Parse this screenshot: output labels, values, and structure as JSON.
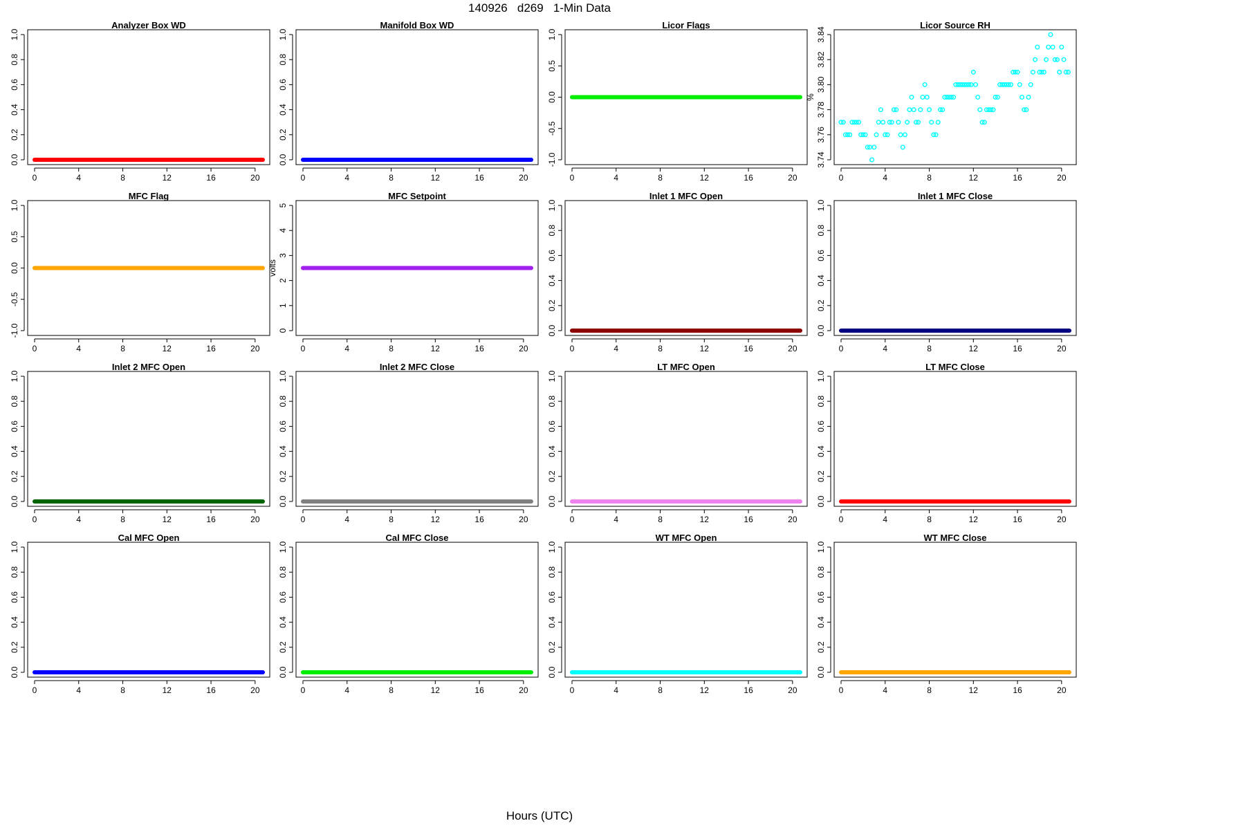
{
  "figure": {
    "title": "140926   d269   1-Min Data",
    "xlabel": "Hours (UTC)"
  },
  "chart_data": [
    {
      "type": "scatter",
      "title": "Analyzer Box WD",
      "ylabel": "",
      "color": "#ff0000",
      "xlim": [
        0,
        20.7
      ],
      "xticks": [
        0,
        4,
        8,
        12,
        16,
        20
      ],
      "ylim": [
        0,
        1
      ],
      "yticks": [
        "0.0",
        "0.2",
        "0.4",
        "0.6",
        "0.8",
        "1.0"
      ],
      "series": [
        {
          "x": [
            0,
            20.7
          ],
          "y": [
            0,
            0
          ],
          "kind": "constant"
        }
      ]
    },
    {
      "type": "scatter",
      "title": "Manifold Box WD",
      "ylabel": "",
      "color": "#0000ff",
      "xlim": [
        0,
        20.7
      ],
      "xticks": [
        0,
        4,
        8,
        12,
        16,
        20
      ],
      "ylim": [
        0,
        1
      ],
      "yticks": [
        "0.0",
        "0.2",
        "0.4",
        "0.6",
        "0.8",
        "1.0"
      ],
      "series": [
        {
          "x": [
            0,
            20.7
          ],
          "y": [
            0,
            0
          ],
          "kind": "constant"
        }
      ]
    },
    {
      "type": "scatter",
      "title": "Licor Flags",
      "ylabel": "",
      "color": "#00ee00",
      "xlim": [
        0,
        20.7
      ],
      "xticks": [
        0,
        4,
        8,
        12,
        16,
        20
      ],
      "ylim": [
        -1,
        1
      ],
      "yticks": [
        "-1.0",
        "-0.5",
        "0.0",
        "0.5",
        "1.0"
      ],
      "series": [
        {
          "x": [
            0,
            20.7
          ],
          "y": [
            0,
            0
          ],
          "kind": "constant"
        }
      ]
    },
    {
      "type": "scatter",
      "title": "Licor Source RH",
      "ylabel": "%",
      "color": "#00ffff",
      "xlim": [
        0,
        20.7
      ],
      "xticks": [
        0,
        4,
        8,
        12,
        16,
        20
      ],
      "ylim": [
        3.74,
        3.84
      ],
      "yticks": [
        "3.74",
        "3.76",
        "3.78",
        "3.80",
        "3.82",
        "3.84"
      ],
      "points": [
        [
          0.0,
          3.77
        ],
        [
          0.2,
          3.77
        ],
        [
          0.4,
          3.76
        ],
        [
          0.6,
          3.76
        ],
        [
          0.8,
          3.76
        ],
        [
          1.0,
          3.77
        ],
        [
          1.2,
          3.77
        ],
        [
          1.4,
          3.77
        ],
        [
          1.6,
          3.77
        ],
        [
          1.8,
          3.76
        ],
        [
          2.0,
          3.76
        ],
        [
          2.2,
          3.76
        ],
        [
          2.4,
          3.75
        ],
        [
          2.6,
          3.75
        ],
        [
          2.8,
          3.74
        ],
        [
          3.0,
          3.75
        ],
        [
          3.2,
          3.76
        ],
        [
          3.4,
          3.77
        ],
        [
          3.6,
          3.78
        ],
        [
          3.8,
          3.77
        ],
        [
          4.0,
          3.76
        ],
        [
          4.2,
          3.76
        ],
        [
          4.4,
          3.77
        ],
        [
          4.6,
          3.77
        ],
        [
          4.8,
          3.78
        ],
        [
          5.0,
          3.78
        ],
        [
          5.2,
          3.77
        ],
        [
          5.4,
          3.76
        ],
        [
          5.6,
          3.75
        ],
        [
          5.8,
          3.76
        ],
        [
          6.0,
          3.77
        ],
        [
          6.2,
          3.78
        ],
        [
          6.4,
          3.79
        ],
        [
          6.6,
          3.78
        ],
        [
          6.8,
          3.77
        ],
        [
          7.0,
          3.77
        ],
        [
          7.2,
          3.78
        ],
        [
          7.4,
          3.79
        ],
        [
          7.6,
          3.8
        ],
        [
          7.8,
          3.79
        ],
        [
          8.0,
          3.78
        ],
        [
          8.2,
          3.77
        ],
        [
          8.4,
          3.76
        ],
        [
          8.6,
          3.76
        ],
        [
          8.8,
          3.77
        ],
        [
          9.0,
          3.78
        ],
        [
          9.2,
          3.78
        ],
        [
          9.4,
          3.79
        ],
        [
          9.6,
          3.79
        ],
        [
          9.8,
          3.79
        ],
        [
          10.0,
          3.79
        ],
        [
          10.2,
          3.79
        ],
        [
          10.4,
          3.8
        ],
        [
          10.6,
          3.8
        ],
        [
          10.8,
          3.8
        ],
        [
          11.0,
          3.8
        ],
        [
          11.2,
          3.8
        ],
        [
          11.4,
          3.8
        ],
        [
          11.6,
          3.8
        ],
        [
          11.8,
          3.8
        ],
        [
          12.0,
          3.81
        ],
        [
          12.2,
          3.8
        ],
        [
          12.4,
          3.79
        ],
        [
          12.6,
          3.78
        ],
        [
          12.8,
          3.77
        ],
        [
          13.0,
          3.77
        ],
        [
          13.2,
          3.78
        ],
        [
          13.4,
          3.78
        ],
        [
          13.6,
          3.78
        ],
        [
          13.8,
          3.78
        ],
        [
          14.0,
          3.79
        ],
        [
          14.2,
          3.79
        ],
        [
          14.4,
          3.8
        ],
        [
          14.6,
          3.8
        ],
        [
          14.8,
          3.8
        ],
        [
          15.0,
          3.8
        ],
        [
          15.2,
          3.8
        ],
        [
          15.4,
          3.8
        ],
        [
          15.6,
          3.81
        ],
        [
          15.8,
          3.81
        ],
        [
          16.0,
          3.81
        ],
        [
          16.2,
          3.8
        ],
        [
          16.4,
          3.79
        ],
        [
          16.6,
          3.78
        ],
        [
          16.8,
          3.78
        ],
        [
          17.0,
          3.79
        ],
        [
          17.2,
          3.8
        ],
        [
          17.4,
          3.81
        ],
        [
          17.6,
          3.82
        ],
        [
          17.8,
          3.83
        ],
        [
          18.0,
          3.81
        ],
        [
          18.2,
          3.81
        ],
        [
          18.4,
          3.81
        ],
        [
          18.6,
          3.82
        ],
        [
          18.8,
          3.83
        ],
        [
          19.0,
          3.84
        ],
        [
          19.2,
          3.83
        ],
        [
          19.4,
          3.82
        ],
        [
          19.6,
          3.82
        ],
        [
          19.8,
          3.81
        ],
        [
          20.0,
          3.83
        ],
        [
          20.2,
          3.82
        ],
        [
          20.4,
          3.81
        ],
        [
          20.6,
          3.81
        ]
      ]
    },
    {
      "type": "scatter",
      "title": "MFC Flag",
      "ylabel": "",
      "color": "#ffa500",
      "xlim": [
        0,
        20.7
      ],
      "xticks": [
        0,
        4,
        8,
        12,
        16,
        20
      ],
      "ylim": [
        -1,
        1
      ],
      "yticks": [
        "-1.0",
        "-0.5",
        "0.0",
        "0.5",
        "1.0"
      ],
      "series": [
        {
          "x": [
            0,
            20.7
          ],
          "y": [
            0,
            0
          ],
          "kind": "constant"
        }
      ]
    },
    {
      "type": "scatter",
      "title": "MFC Setpoint",
      "ylabel": "volts",
      "color": "#a020f0",
      "xlim": [
        0,
        20.7
      ],
      "xticks": [
        0,
        4,
        8,
        12,
        16,
        20
      ],
      "ylim": [
        0,
        5
      ],
      "yticks": [
        "0",
        "1",
        "2",
        "3",
        "4",
        "5"
      ],
      "series": [
        {
          "x": [
            0,
            20.7
          ],
          "y": [
            2.5,
            2.5
          ],
          "kind": "constant"
        }
      ]
    },
    {
      "type": "scatter",
      "title": "Inlet 1 MFC Open",
      "ylabel": "",
      "color": "#8b0000",
      "xlim": [
        0,
        20.7
      ],
      "xticks": [
        0,
        4,
        8,
        12,
        16,
        20
      ],
      "ylim": [
        0,
        1
      ],
      "yticks": [
        "0.0",
        "0.2",
        "0.4",
        "0.6",
        "0.8",
        "1.0"
      ],
      "series": [
        {
          "x": [
            0,
            20.7
          ],
          "y": [
            0,
            0
          ],
          "kind": "constant"
        }
      ]
    },
    {
      "type": "scatter",
      "title": "Inlet 1 MFC Close",
      "ylabel": "",
      "color": "#000080",
      "xlim": [
        0,
        20.7
      ],
      "xticks": [
        0,
        4,
        8,
        12,
        16,
        20
      ],
      "ylim": [
        0,
        1
      ],
      "yticks": [
        "0.0",
        "0.2",
        "0.4",
        "0.6",
        "0.8",
        "1.0"
      ],
      "series": [
        {
          "x": [
            0,
            20.7
          ],
          "y": [
            0,
            0
          ],
          "kind": "constant"
        }
      ]
    },
    {
      "type": "scatter",
      "title": "Inlet 2 MFC Open",
      "ylabel": "",
      "color": "#006400",
      "xlim": [
        0,
        20.7
      ],
      "xticks": [
        0,
        4,
        8,
        12,
        16,
        20
      ],
      "ylim": [
        0,
        1
      ],
      "yticks": [
        "0.0",
        "0.2",
        "0.4",
        "0.6",
        "0.8",
        "1.0"
      ],
      "series": [
        {
          "x": [
            0,
            20.7
          ],
          "y": [
            0,
            0
          ],
          "kind": "constant"
        }
      ]
    },
    {
      "type": "scatter",
      "title": "Inlet 2 MFC Close",
      "ylabel": "",
      "color": "#808080",
      "xlim": [
        0,
        20.7
      ],
      "xticks": [
        0,
        4,
        8,
        12,
        16,
        20
      ],
      "ylim": [
        0,
        1
      ],
      "yticks": [
        "0.0",
        "0.2",
        "0.4",
        "0.6",
        "0.8",
        "1.0"
      ],
      "series": [
        {
          "x": [
            0,
            20.7
          ],
          "y": [
            0,
            0
          ],
          "kind": "constant"
        }
      ]
    },
    {
      "type": "scatter",
      "title": "LT MFC Open",
      "ylabel": "",
      "color": "#ee82ee",
      "xlim": [
        0,
        20.7
      ],
      "xticks": [
        0,
        4,
        8,
        12,
        16,
        20
      ],
      "ylim": [
        0,
        1
      ],
      "yticks": [
        "0.0",
        "0.2",
        "0.4",
        "0.6",
        "0.8",
        "1.0"
      ],
      "series": [
        {
          "x": [
            0,
            20.7
          ],
          "y": [
            0,
            0
          ],
          "kind": "constant"
        }
      ]
    },
    {
      "type": "scatter",
      "title": "LT MFC Close",
      "ylabel": "",
      "color": "#ff0000",
      "xlim": [
        0,
        20.7
      ],
      "xticks": [
        0,
        4,
        8,
        12,
        16,
        20
      ],
      "ylim": [
        0,
        1
      ],
      "yticks": [
        "0.0",
        "0.2",
        "0.4",
        "0.6",
        "0.8",
        "1.0"
      ],
      "series": [
        {
          "x": [
            0,
            20.7
          ],
          "y": [
            0,
            0
          ],
          "kind": "constant"
        }
      ]
    },
    {
      "type": "scatter",
      "title": "Cal MFC Open",
      "ylabel": "",
      "color": "#0000ff",
      "xlim": [
        0,
        20.7
      ],
      "xticks": [
        0,
        4,
        8,
        12,
        16,
        20
      ],
      "ylim": [
        0,
        1
      ],
      "yticks": [
        "0.0",
        "0.2",
        "0.4",
        "0.6",
        "0.8",
        "1.0"
      ],
      "series": [
        {
          "x": [
            0,
            20.7
          ],
          "y": [
            0,
            0
          ],
          "kind": "constant"
        }
      ]
    },
    {
      "type": "scatter",
      "title": "Cal MFC Close",
      "ylabel": "",
      "color": "#00ee00",
      "xlim": [
        0,
        20.7
      ],
      "xticks": [
        0,
        4,
        8,
        12,
        16,
        20
      ],
      "ylim": [
        0,
        1
      ],
      "yticks": [
        "0.0",
        "0.2",
        "0.4",
        "0.6",
        "0.8",
        "1.0"
      ],
      "series": [
        {
          "x": [
            0,
            20.7
          ],
          "y": [
            0,
            0
          ],
          "kind": "constant"
        }
      ]
    },
    {
      "type": "scatter",
      "title": "WT MFC Open",
      "ylabel": "",
      "color": "#00ffff",
      "xlim": [
        0,
        20.7
      ],
      "xticks": [
        0,
        4,
        8,
        12,
        16,
        20
      ],
      "ylim": [
        0,
        1
      ],
      "yticks": [
        "0.0",
        "0.2",
        "0.4",
        "0.6",
        "0.8",
        "1.0"
      ],
      "series": [
        {
          "x": [
            0,
            20.7
          ],
          "y": [
            0,
            0
          ],
          "kind": "constant"
        }
      ]
    },
    {
      "type": "scatter",
      "title": "WT MFC Close",
      "ylabel": "",
      "color": "#ffa500",
      "xlim": [
        0,
        20.7
      ],
      "xticks": [
        0,
        4,
        8,
        12,
        16,
        20
      ],
      "ylim": [
        0,
        1
      ],
      "yticks": [
        "0.0",
        "0.2",
        "0.4",
        "0.6",
        "0.8",
        "1.0"
      ],
      "series": [
        {
          "x": [
            0,
            20.7
          ],
          "y": [
            0,
            0
          ],
          "kind": "constant"
        }
      ]
    }
  ]
}
